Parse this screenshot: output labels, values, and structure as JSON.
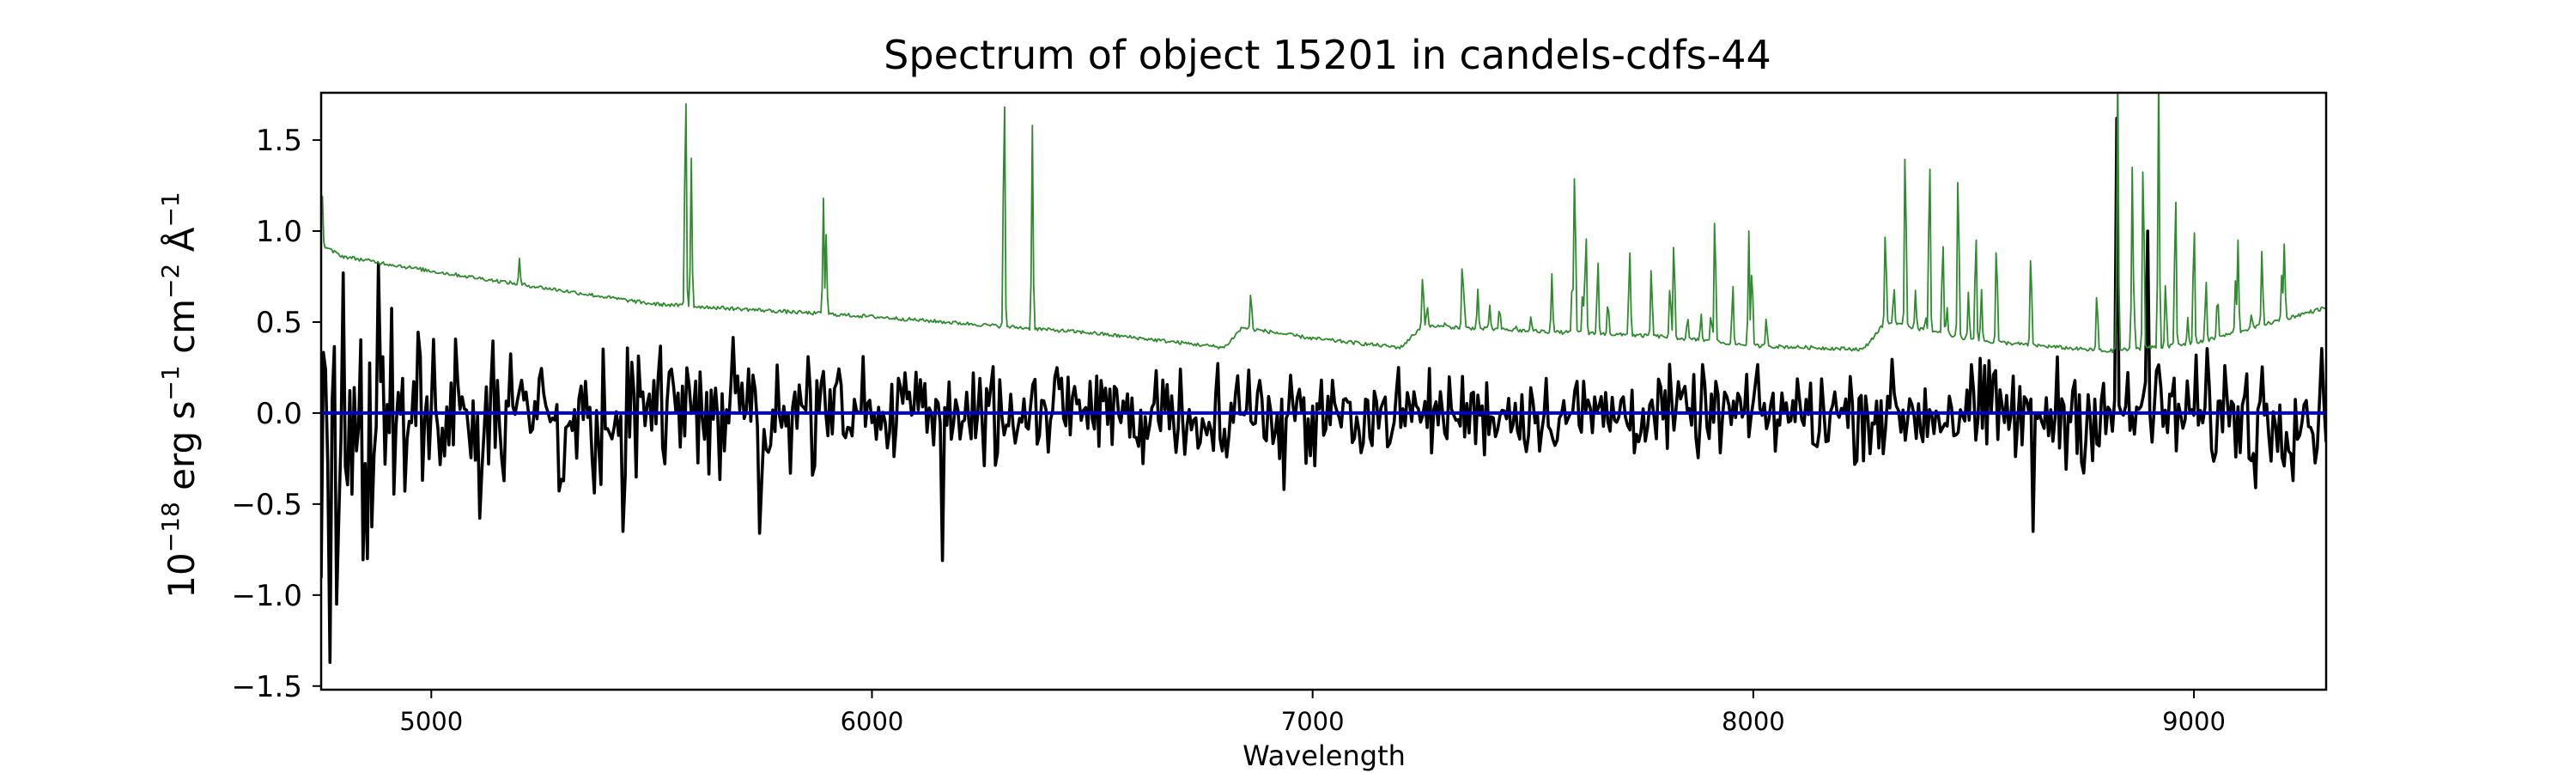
{
  "chart_data": {
    "type": "line",
    "title": "Spectrum of object 15201 in candels-cdfs-44",
    "xlabel": "Wavelength",
    "ylabel": {
      "prefix": "10",
      "exp_prefix": "−18",
      "unit_erg": " erg s",
      "exp_s": "−1",
      "unit_cm": " cm",
      "exp_cm": "−2",
      "unit_A": " Å",
      "exp_A": "−1"
    },
    "xlim": [
      4750,
      9300
    ],
    "ylim": [
      -1.52,
      1.76
    ],
    "xticks": [
      5000,
      6000,
      7000,
      8000,
      9000
    ],
    "yticks": [
      -1.5,
      -1.0,
      -0.5,
      0.0,
      0.5,
      1.0,
      1.5
    ],
    "ytick_labels": [
      "−1.5",
      "−1.0",
      "−0.5",
      "0.0",
      "0.5",
      "1.0",
      "1.5"
    ],
    "grid": false,
    "legend": "none",
    "series": [
      {
        "role": "flux",
        "color": "#000000",
        "width": 3.6,
        "noise": {
          "x_start": 4750,
          "x_end": 9300,
          "step": 5,
          "amplitude_knots": [
            [
              4750,
              0.7
            ],
            [
              4900,
              0.4
            ],
            [
              5200,
              0.3
            ],
            [
              6000,
              0.22
            ],
            [
              7000,
              0.17
            ],
            [
              8000,
              0.17
            ],
            [
              8700,
              0.22
            ],
            [
              9300,
              0.24
            ]
          ]
        },
        "features": [
          {
            "x": 4770,
            "y": -1.37
          },
          {
            "x": 4785,
            "y": -1.05
          },
          {
            "x": 4800,
            "y": 0.77
          },
          {
            "x": 4855,
            "y": -0.8
          },
          {
            "x": 4880,
            "y": 0.82
          },
          {
            "x": 5435,
            "y": -0.65
          },
          {
            "x": 5745,
            "y": -0.66
          },
          {
            "x": 6160,
            "y": -0.81
          },
          {
            "x": 6935,
            "y": -0.42
          },
          {
            "x": 8635,
            "y": -0.65
          },
          {
            "x": 8825,
            "y": 1.62
          },
          {
            "x": 8895,
            "y": 1.0
          },
          {
            "x": 9140,
            "y": -0.41
          }
        ]
      },
      {
        "role": "zero",
        "color": "#0000cc",
        "width": 4,
        "x": [
          4750,
          9300
        ],
        "y": [
          0,
          0
        ]
      },
      {
        "role": "error-sky",
        "color": "#2e8b2e",
        "width": 1.8,
        "continuum_knots": [
          [
            4750,
            0.92
          ],
          [
            4800,
            0.86
          ],
          [
            5000,
            0.78
          ],
          [
            5500,
            0.6
          ],
          [
            6000,
            0.53
          ],
          [
            6500,
            0.44
          ],
          [
            6800,
            0.36
          ],
          [
            6840,
            0.47
          ],
          [
            7000,
            0.41
          ],
          [
            7200,
            0.36
          ],
          [
            7250,
            0.48
          ],
          [
            7500,
            0.45
          ],
          [
            7800,
            0.42
          ],
          [
            8000,
            0.37
          ],
          [
            8250,
            0.35
          ],
          [
            8300,
            0.5
          ],
          [
            8500,
            0.4
          ],
          [
            8800,
            0.34
          ],
          [
            9000,
            0.38
          ],
          [
            9300,
            0.58
          ]
        ],
        "emission_lines": [
          {
            "x": 4752,
            "y": 1.24
          },
          {
            "x": 5200,
            "y": 0.85
          },
          {
            "x": 5577,
            "y": 1.9
          },
          {
            "x": 5590,
            "y": 1.4
          },
          {
            "x": 5890,
            "y": 1.18
          },
          {
            "x": 5896,
            "y": 0.98
          },
          {
            "x": 6300,
            "y": 1.9
          },
          {
            "x": 6364,
            "y": 1.58
          },
          {
            "x": 6860,
            "y": 0.68
          },
          {
            "x": 7250,
            "y": 0.78
          },
          {
            "x": 7340,
            "y": 0.85
          },
          {
            "x": 7595,
            "y": 1.44
          },
          {
            "x": 7620,
            "y": 1.05
          },
          {
            "x": 7720,
            "y": 0.88
          },
          {
            "x": 7820,
            "y": 1.0
          },
          {
            "x": 7913,
            "y": 1.16
          },
          {
            "x": 7990,
            "y": 1.0
          },
          {
            "x": 8300,
            "y": 1.05
          },
          {
            "x": 8345,
            "y": 1.56
          },
          {
            "x": 8400,
            "y": 1.5
          },
          {
            "x": 8430,
            "y": 1.0
          },
          {
            "x": 8465,
            "y": 1.42
          },
          {
            "x": 8505,
            "y": 1.05
          },
          {
            "x": 8630,
            "y": 0.92
          },
          {
            "x": 8827,
            "y": 1.9
          },
          {
            "x": 8860,
            "y": 1.35
          },
          {
            "x": 8885,
            "y": 1.5
          },
          {
            "x": 8920,
            "y": 1.9
          },
          {
            "x": 8958,
            "y": 1.3
          },
          {
            "x": 9000,
            "y": 1.1
          },
          {
            "x": 9100,
            "y": 0.95
          },
          {
            "x": 9200,
            "y": 0.8
          }
        ],
        "forest_ranges": [
          [
            7260,
            8050,
            0.5
          ],
          [
            8290,
            8560,
            0.6
          ],
          [
            8780,
            9300,
            0.5
          ]
        ]
      }
    ]
  }
}
